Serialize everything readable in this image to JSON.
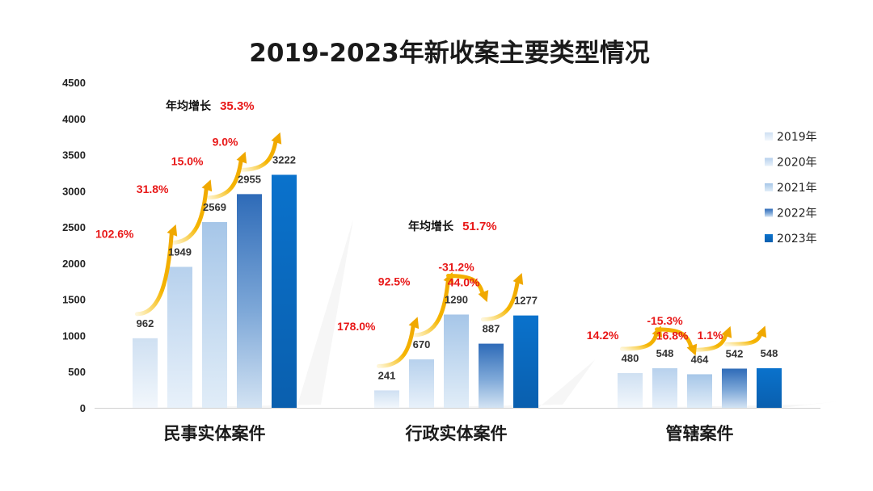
{
  "chart_data": {
    "type": "bar",
    "title": "2019-2023年新收案主要类型情况",
    "categories": [
      "民事实体案件",
      "行政实体案件",
      "管辖案件"
    ],
    "ylim": [
      0,
      4500
    ],
    "yticks": [
      0,
      500,
      1000,
      1500,
      2000,
      2500,
      3000,
      3500,
      4000,
      4500
    ],
    "legend_position": "right",
    "series": [
      {
        "name": "2019年",
        "values": [
          962,
          241,
          480
        ],
        "color": "#cfe0f2"
      },
      {
        "name": "2020年",
        "values": [
          1949,
          670,
          548
        ],
        "color": "#b9d3ee"
      },
      {
        "name": "2021年",
        "values": [
          2569,
          1290,
          464
        ],
        "color": "#a9c9ea"
      },
      {
        "name": "2022年",
        "values": [
          2955,
          887,
          542
        ],
        "color": "#3e78c0"
      },
      {
        "name": "2023年",
        "values": [
          3222,
          1277,
          548
        ],
        "color": "#0a6cc4"
      }
    ],
    "growth_rates": [
      [
        "102.6%",
        "31.8%",
        "15.0%",
        "9.0%"
      ],
      [
        "178.0%",
        "92.5%",
        "-31.2%",
        "44.0%"
      ],
      [
        "14.2%",
        "-15.3%",
        "16.8%",
        "1.1%"
      ]
    ],
    "annotations": [
      {
        "text": "年均增长",
        "value": "35.3%"
      },
      {
        "text": "年均增长",
        "value": "51.7%"
      }
    ]
  }
}
